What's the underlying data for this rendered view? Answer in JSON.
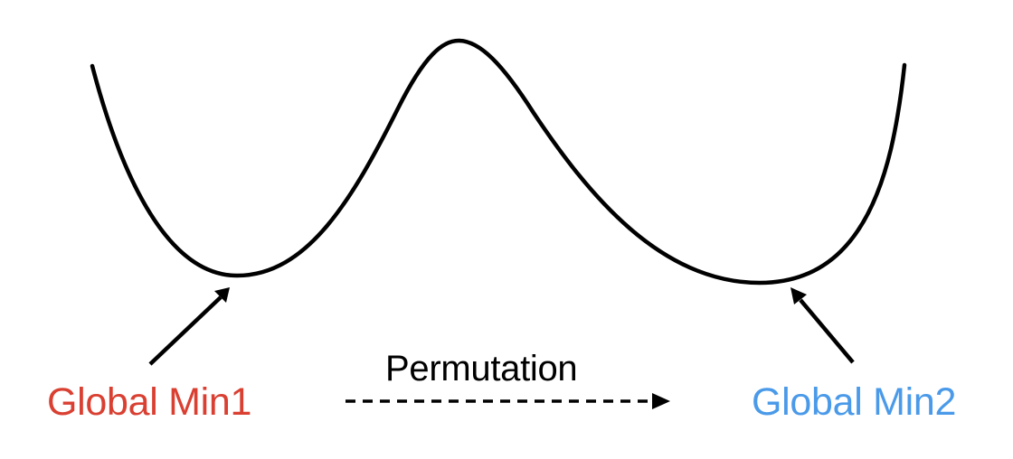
{
  "labels": {
    "global_min1": "Global Min1",
    "global_min2": "Global Min2",
    "permutation": "Permutation"
  },
  "colors": {
    "curve": "#000000",
    "min1": "#d94032",
    "min2": "#4a9ae9",
    "text": "#000000"
  }
}
